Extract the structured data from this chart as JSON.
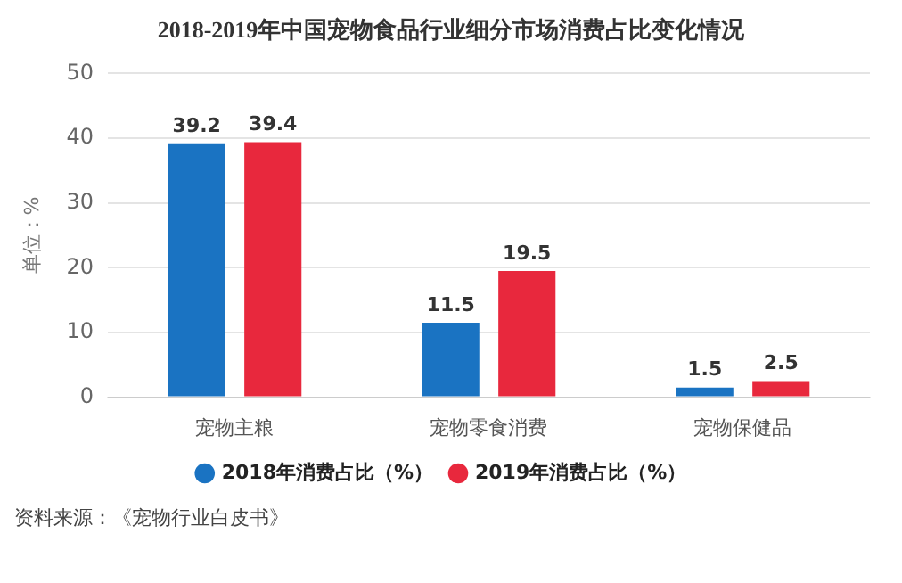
{
  "chart_data": {
    "type": "bar",
    "title": "2018-2019年中国宠物食品行业细分市场消费占比变化情况",
    "ylabel": "单位：%",
    "categories": [
      "宠物主粮",
      "宠物零食消费",
      "宠物保健品"
    ],
    "series": [
      {
        "name": "2018年消费占比（%）",
        "color": "#1a73c2",
        "values": [
          39.2,
          11.5,
          1.5
        ]
      },
      {
        "name": "2019年消费占比（%）",
        "color": "#e8283d",
        "values": [
          39.4,
          19.5,
          2.5
        ]
      }
    ],
    "ylim": [
      0,
      50
    ],
    "yticks": [
      0,
      10,
      20,
      30,
      40,
      50
    ],
    "grid": "y",
    "legend": "bottom",
    "data_labels": true,
    "annotations": [
      "资料来源：《宠物行业白皮书》"
    ]
  }
}
